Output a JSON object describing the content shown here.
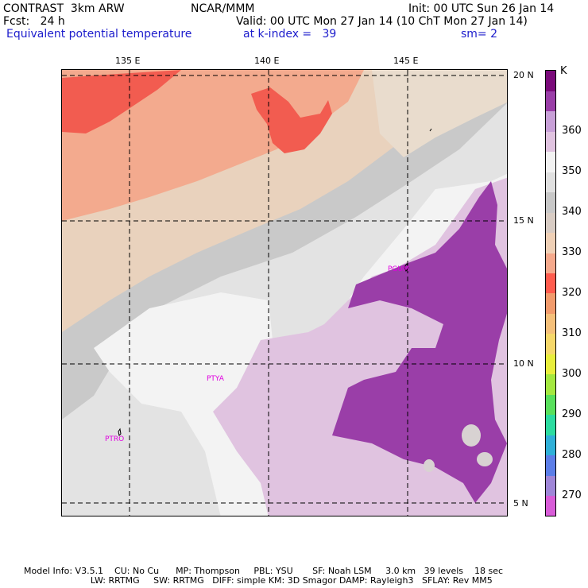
{
  "header": {
    "model": "CONTRAST  3km ARW",
    "org": "NCAR/MMM",
    "init": "Init: 00 UTC Sun 26 Jan 14",
    "fcst": "Fcst:   24 h",
    "valid": "Valid: 00 UTC Mon 27 Jan 14 (10 ChT Mon 27 Jan 14)",
    "field": "Equivalent potential temperature",
    "level": "at k-index =   39",
    "smoothing": "sm= 2"
  },
  "axes": {
    "lon_labels": [
      "135 E",
      "140 E",
      "145 E"
    ],
    "lat_labels": [
      "20 N",
      "15 N",
      "10 N",
      "5 N"
    ]
  },
  "stations": [
    "PGUM",
    "PTYA",
    "PTRO"
  ],
  "colorbar": {
    "unit": "K",
    "ticks": [
      "270",
      "280",
      "290",
      "300",
      "310",
      "320",
      "330",
      "340",
      "350",
      "360"
    ],
    "colors": [
      "#d85cd8",
      "#9f86d8",
      "#5c7ee8",
      "#2fb0d8",
      "#2cdca0",
      "#58e05c",
      "#a4e840",
      "#e8ee3c",
      "#f6d86a",
      "#f5c07a",
      "#f29b6c",
      "#ff5c4e",
      "#f5a98c",
      "#efd0b6",
      "#d8ccc4",
      "#c8c8c8",
      "#e0e0e0",
      "#f2f2f2",
      "#e0c3e0",
      "#c8a0d8",
      "#9a3ea8",
      "#7a0a7a"
    ]
  },
  "colors": {
    "bg_field": "#cacaca",
    "theta_330": "#f25c50",
    "theta_335": "#f3a98c",
    "theta_340": "#edceb6",
    "theta_350": "#d4d0cc",
    "theta_355": "#e6e6e6",
    "theta_360": "#f2f2f2",
    "theta_365": "#e0c2e0",
    "theta_370": "#9a3ea8"
  },
  "footer": {
    "line1": "Model Info: V3.5.1    CU: No Cu      MP: Thompson     PBL: YSU       SF: Noah LSM     3.0 km   39 levels    18 sec",
    "line2": "                        LW: RRTMG     SW: RRTMG   DIFF: simple KM: 3D Smagor DAMP: Rayleigh3   SFLAY: Rev MM5"
  }
}
